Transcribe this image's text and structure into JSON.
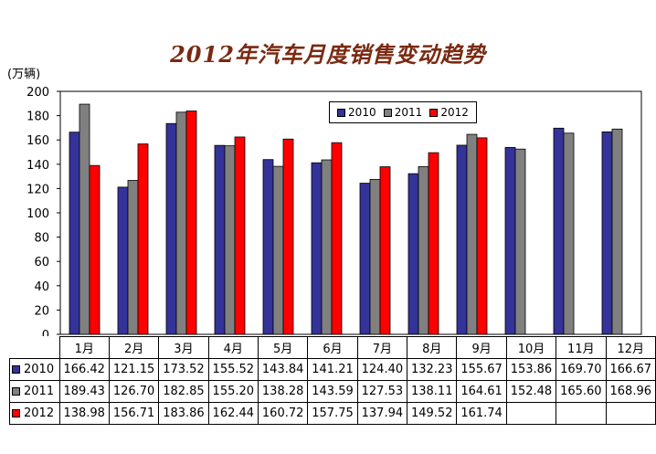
{
  "chart_data": {
    "type": "bar",
    "title": "2012年汽车月度销售变动趋势",
    "ylabel": "(万辆)",
    "xlabel": "",
    "ylim": [
      0,
      200
    ],
    "yticks": [
      "0",
      "20",
      "40",
      "60",
      "80",
      "100",
      "120",
      "140",
      "160",
      "180",
      "200"
    ],
    "categories": [
      "1月",
      "2月",
      "3月",
      "4月",
      "5月",
      "6月",
      "7月",
      "8月",
      "9月",
      "10月",
      "11月",
      "12月"
    ],
    "series": [
      {
        "name": "2010",
        "color": "#333399",
        "values": [
          166.42,
          121.15,
          173.52,
          155.52,
          143.84,
          141.21,
          124.4,
          132.23,
          155.67,
          153.86,
          169.7,
          166.67
        ],
        "display": [
          "166.42",
          "121.15",
          "173.52",
          "155.52",
          "143.84",
          "141.21",
          "124.40",
          "132.23",
          "155.67",
          "153.86",
          "169.70",
          "166.67"
        ]
      },
      {
        "name": "2011",
        "color": "#808080",
        "values": [
          189.43,
          126.7,
          182.85,
          155.2,
          138.28,
          143.59,
          127.53,
          138.11,
          164.61,
          152.48,
          165.6,
          168.96
        ],
        "display": [
          "189.43",
          "126.70",
          "182.85",
          "155.20",
          "138.28",
          "143.59",
          "127.53",
          "138.11",
          "164.61",
          "152.48",
          "165.60",
          "168.96"
        ]
      },
      {
        "name": "2012",
        "color": "#ff0000",
        "values": [
          138.98,
          156.71,
          183.86,
          162.44,
          160.72,
          157.75,
          137.94,
          149.52,
          161.74,
          null,
          null,
          null
        ],
        "display": [
          "138.98",
          "156.71",
          "183.86",
          "162.44",
          "160.72",
          "157.75",
          "137.94",
          "149.52",
          "161.74",
          "",
          "",
          ""
        ]
      }
    ],
    "grid": false,
    "legend_position": "top-right"
  }
}
